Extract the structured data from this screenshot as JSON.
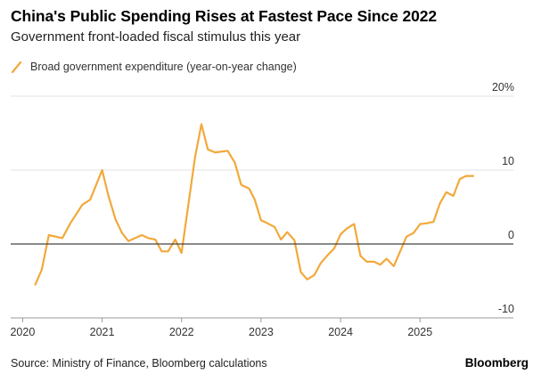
{
  "colors": {
    "series": "#F2A93B",
    "zero_line": "#444444",
    "grid": "#E3E3E3",
    "axis": "#999999"
  },
  "footer": {
    "source": "Source: Ministry of Finance, Bloomberg calculations",
    "brand": "Bloomberg"
  },
  "chart_data": {
    "type": "line",
    "title": "China's Public Spending Rises at Fastest Pace Since 2022",
    "subtitle": "Government front-loaded fiscal stimulus this year",
    "ylim": [
      -10,
      20
    ],
    "xlim": [
      2019.85,
      2025.95
    ],
    "y_ticks": [
      {
        "value": 20,
        "label": "20%"
      },
      {
        "value": 10,
        "label": "10"
      },
      {
        "value": 0,
        "label": "0"
      },
      {
        "value": -10,
        "label": "-10"
      }
    ],
    "x_ticks": [
      {
        "value": 2020,
        "label": "2020"
      },
      {
        "value": 2021,
        "label": "2021"
      },
      {
        "value": 2022,
        "label": "2022"
      },
      {
        "value": 2023,
        "label": "2023"
      },
      {
        "value": 2024,
        "label": "2024"
      },
      {
        "value": 2025,
        "label": "2025"
      }
    ],
    "grid": true,
    "legend_placement": "top-left",
    "series": [
      {
        "name": "Broad government expenditure (year-on-year change)",
        "x": [
          2020.16,
          2020.24,
          2020.33,
          2020.5,
          2020.6,
          2020.75,
          2020.85,
          2021.0,
          2021.08,
          2021.17,
          2021.25,
          2021.33,
          2021.5,
          2021.58,
          2021.67,
          2021.75,
          2021.83,
          2021.92,
          2022.0,
          2022.17,
          2022.25,
          2022.33,
          2022.42,
          2022.58,
          2022.67,
          2022.75,
          2022.85,
          2022.92,
          2023.0,
          2023.08,
          2023.17,
          2023.25,
          2023.33,
          2023.42,
          2023.5,
          2023.58,
          2023.67,
          2023.75,
          2023.83,
          2023.92,
          2024.0,
          2024.08,
          2024.17,
          2024.25,
          2024.33,
          2024.42,
          2024.5,
          2024.58,
          2024.67,
          2024.75,
          2024.83,
          2024.92,
          2025.0,
          2025.08,
          2025.17,
          2025.25,
          2025.33,
          2025.42,
          2025.5,
          2025.58,
          2025.67
        ],
        "values": [
          -5.5,
          -3.5,
          1.2,
          0.8,
          2.8,
          5.3,
          6.0,
          10.0,
          6.5,
          3.3,
          1.5,
          0.4,
          1.2,
          0.8,
          0.6,
          -1.0,
          -1.0,
          0.6,
          -1.2,
          11.8,
          16.2,
          12.8,
          12.4,
          12.6,
          11.0,
          8.0,
          7.5,
          6.0,
          3.2,
          2.8,
          2.3,
          0.6,
          1.6,
          0.5,
          -3.8,
          -4.8,
          -4.2,
          -2.6,
          -1.6,
          -0.6,
          1.3,
          2.1,
          2.7,
          -1.6,
          -2.4,
          -2.4,
          -2.8,
          -2.0,
          -3.0,
          -1.0,
          1.0,
          1.5,
          2.7,
          2.8,
          3.0,
          5.5,
          7.0,
          6.5,
          8.8,
          9.2,
          9.2
        ]
      }
    ]
  }
}
